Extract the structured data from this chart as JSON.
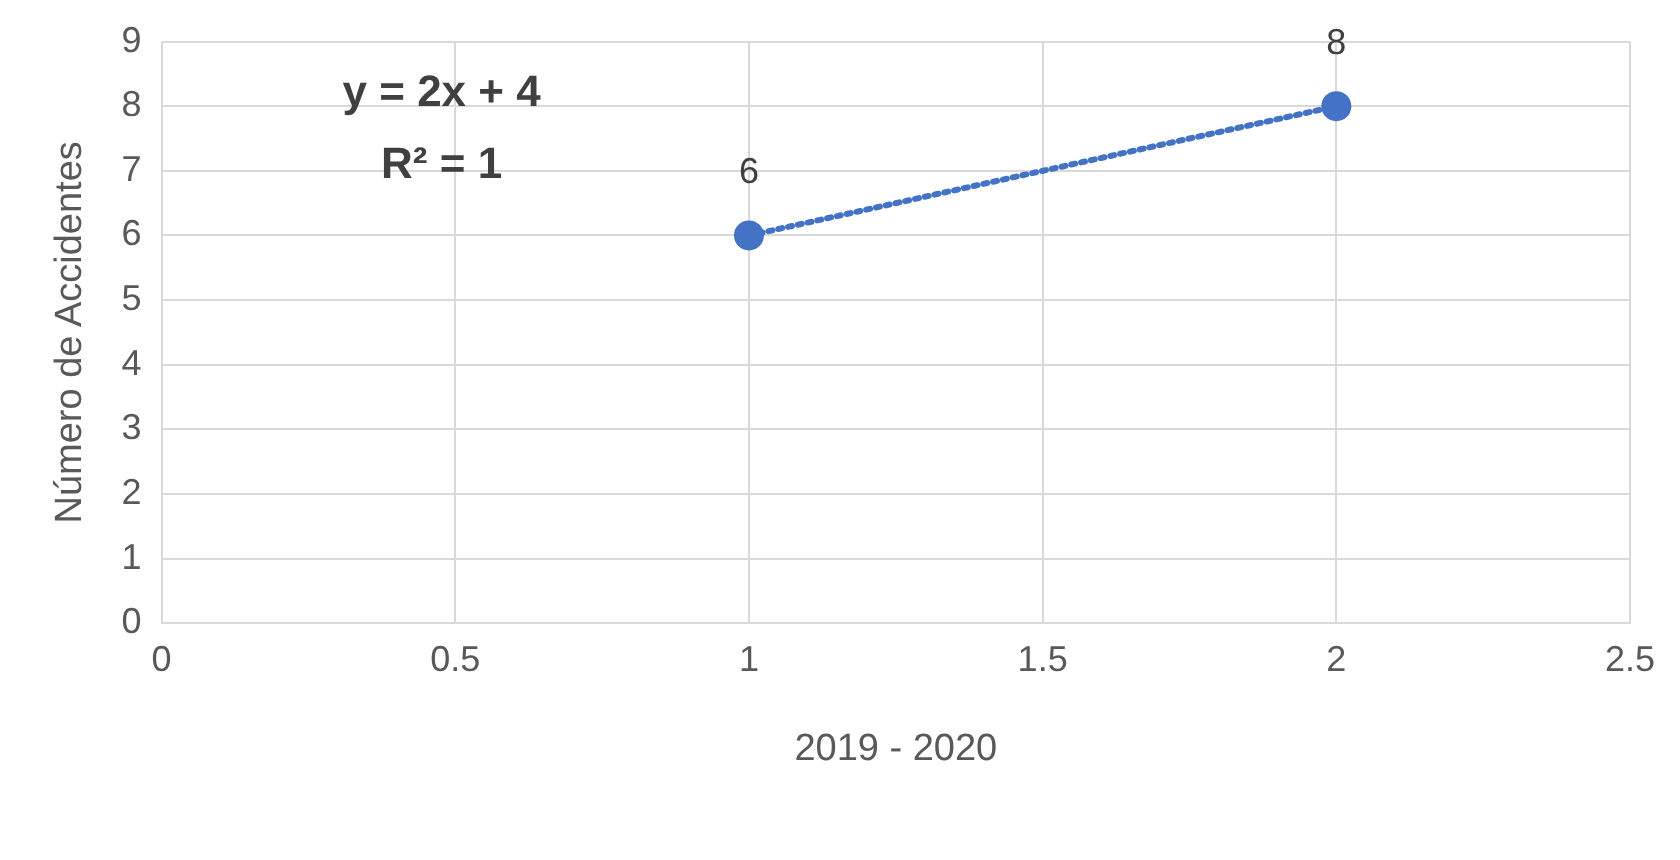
{
  "chart_data": {
    "type": "scatter",
    "xlabel": "2019 - 2020",
    "ylabel": "Número de Accidentes",
    "x": [
      1,
      2
    ],
    "series": [
      {
        "color": "#4472c4",
        "values": [
          6,
          8
        ],
        "value_labels": [
          "6",
          "8"
        ],
        "marker": "circle"
      },
      {
        "type": "line",
        "color": "#4472c4",
        "x": [
          1,
          2
        ],
        "values": [
          6,
          8
        ],
        "line_style": "dotted",
        "marker": "none"
      }
    ],
    "annotations": [
      "y = 2x + 4",
      "R² = 1"
    ],
    "xlim": [
      0,
      2.5
    ],
    "xticks": [
      0,
      0.5,
      1,
      1.5,
      2,
      2.5
    ],
    "ylim": [
      0,
      9
    ],
    "yticks": [
      0,
      1,
      2,
      3,
      4,
      5,
      6,
      7,
      8,
      9
    ],
    "grid": true,
    "legend": false
  }
}
